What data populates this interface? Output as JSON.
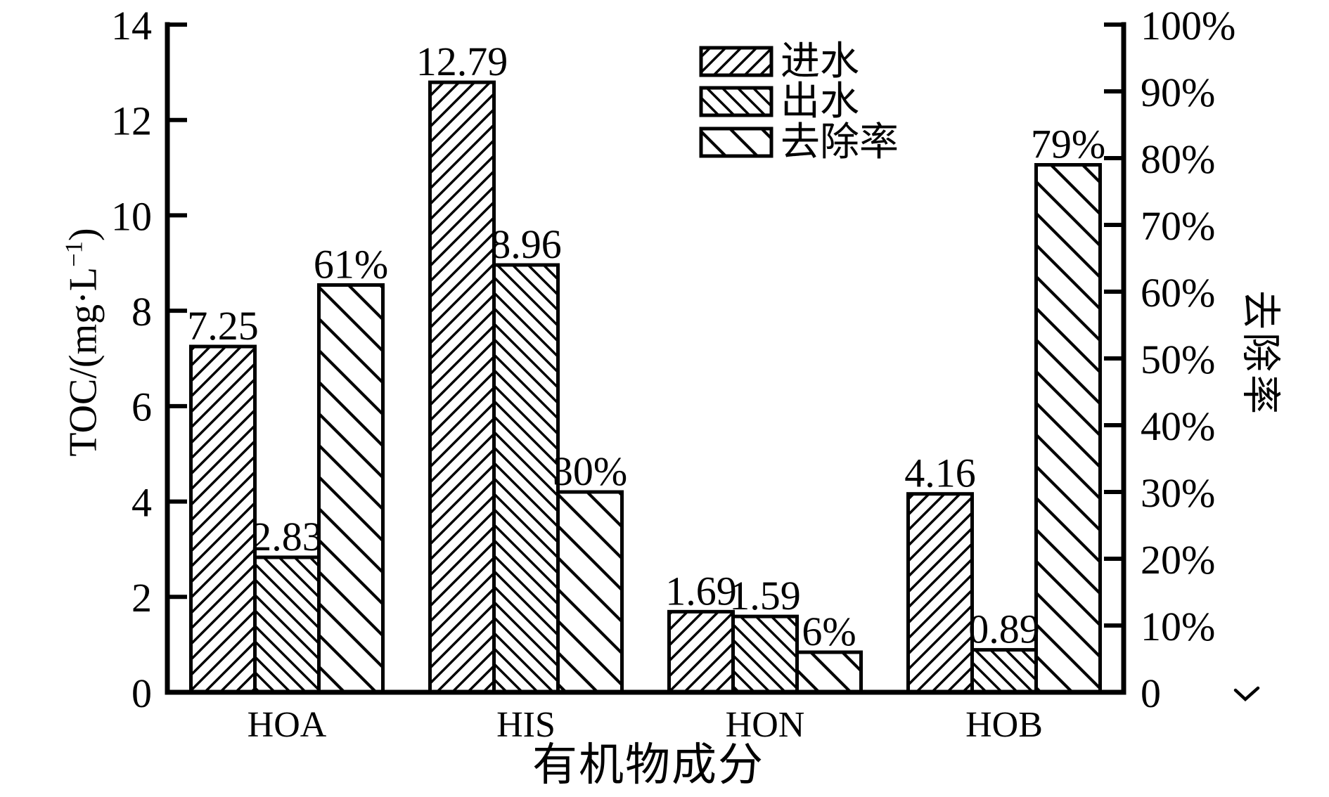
{
  "chart_data": {
    "type": "bar",
    "categories": [
      "HOA",
      "HIS",
      "HON",
      "HOB"
    ],
    "series": [
      {
        "key": "influent",
        "name": "进水",
        "axis": "left",
        "hatch": "forward-dense",
        "values": [
          7.25,
          12.79,
          1.69,
          4.16
        ],
        "labels": [
          "7.25",
          "12.79",
          "1.69",
          "4.16"
        ]
      },
      {
        "key": "effluent",
        "name": "出水",
        "axis": "left",
        "hatch": "back-dense",
        "values": [
          2.83,
          8.96,
          1.59,
          0.89
        ],
        "labels": [
          "2.83",
          "8.96",
          "1.59",
          "0.89"
        ]
      },
      {
        "key": "removal",
        "name": "去除率",
        "axis": "right",
        "hatch": "back-sparse",
        "values": [
          61,
          30,
          6,
          79
        ],
        "labels": [
          "61%",
          "30%",
          "6%",
          "79%"
        ]
      }
    ],
    "left_axis": {
      "title": "TOC/(mg·L⁻¹)",
      "title_parts": [
        "TOC/(mg·L",
        "−1",
        ")"
      ],
      "min": 0,
      "max": 14,
      "tick_values": [
        0,
        2,
        4,
        6,
        8,
        10,
        12,
        14
      ],
      "tick_labels": [
        "0",
        "2",
        "4",
        "6",
        "8",
        "10",
        "12",
        "14"
      ]
    },
    "right_axis": {
      "title": "去除率",
      "min": 0,
      "max": 100,
      "tick_values": [
        0,
        10,
        20,
        30,
        40,
        50,
        60,
        70,
        80,
        90,
        100
      ],
      "tick_labels": [
        "0",
        "10%",
        "20%",
        "30%",
        "40%",
        "50%",
        "60%",
        "70%",
        "80%",
        "90%",
        "100%"
      ],
      "stray_mark": true
    },
    "xlabel": "有机物成分",
    "legend_position": "top-center",
    "grid": false,
    "colors": {
      "foreground": "#000000",
      "background": "#ffffff"
    }
  }
}
